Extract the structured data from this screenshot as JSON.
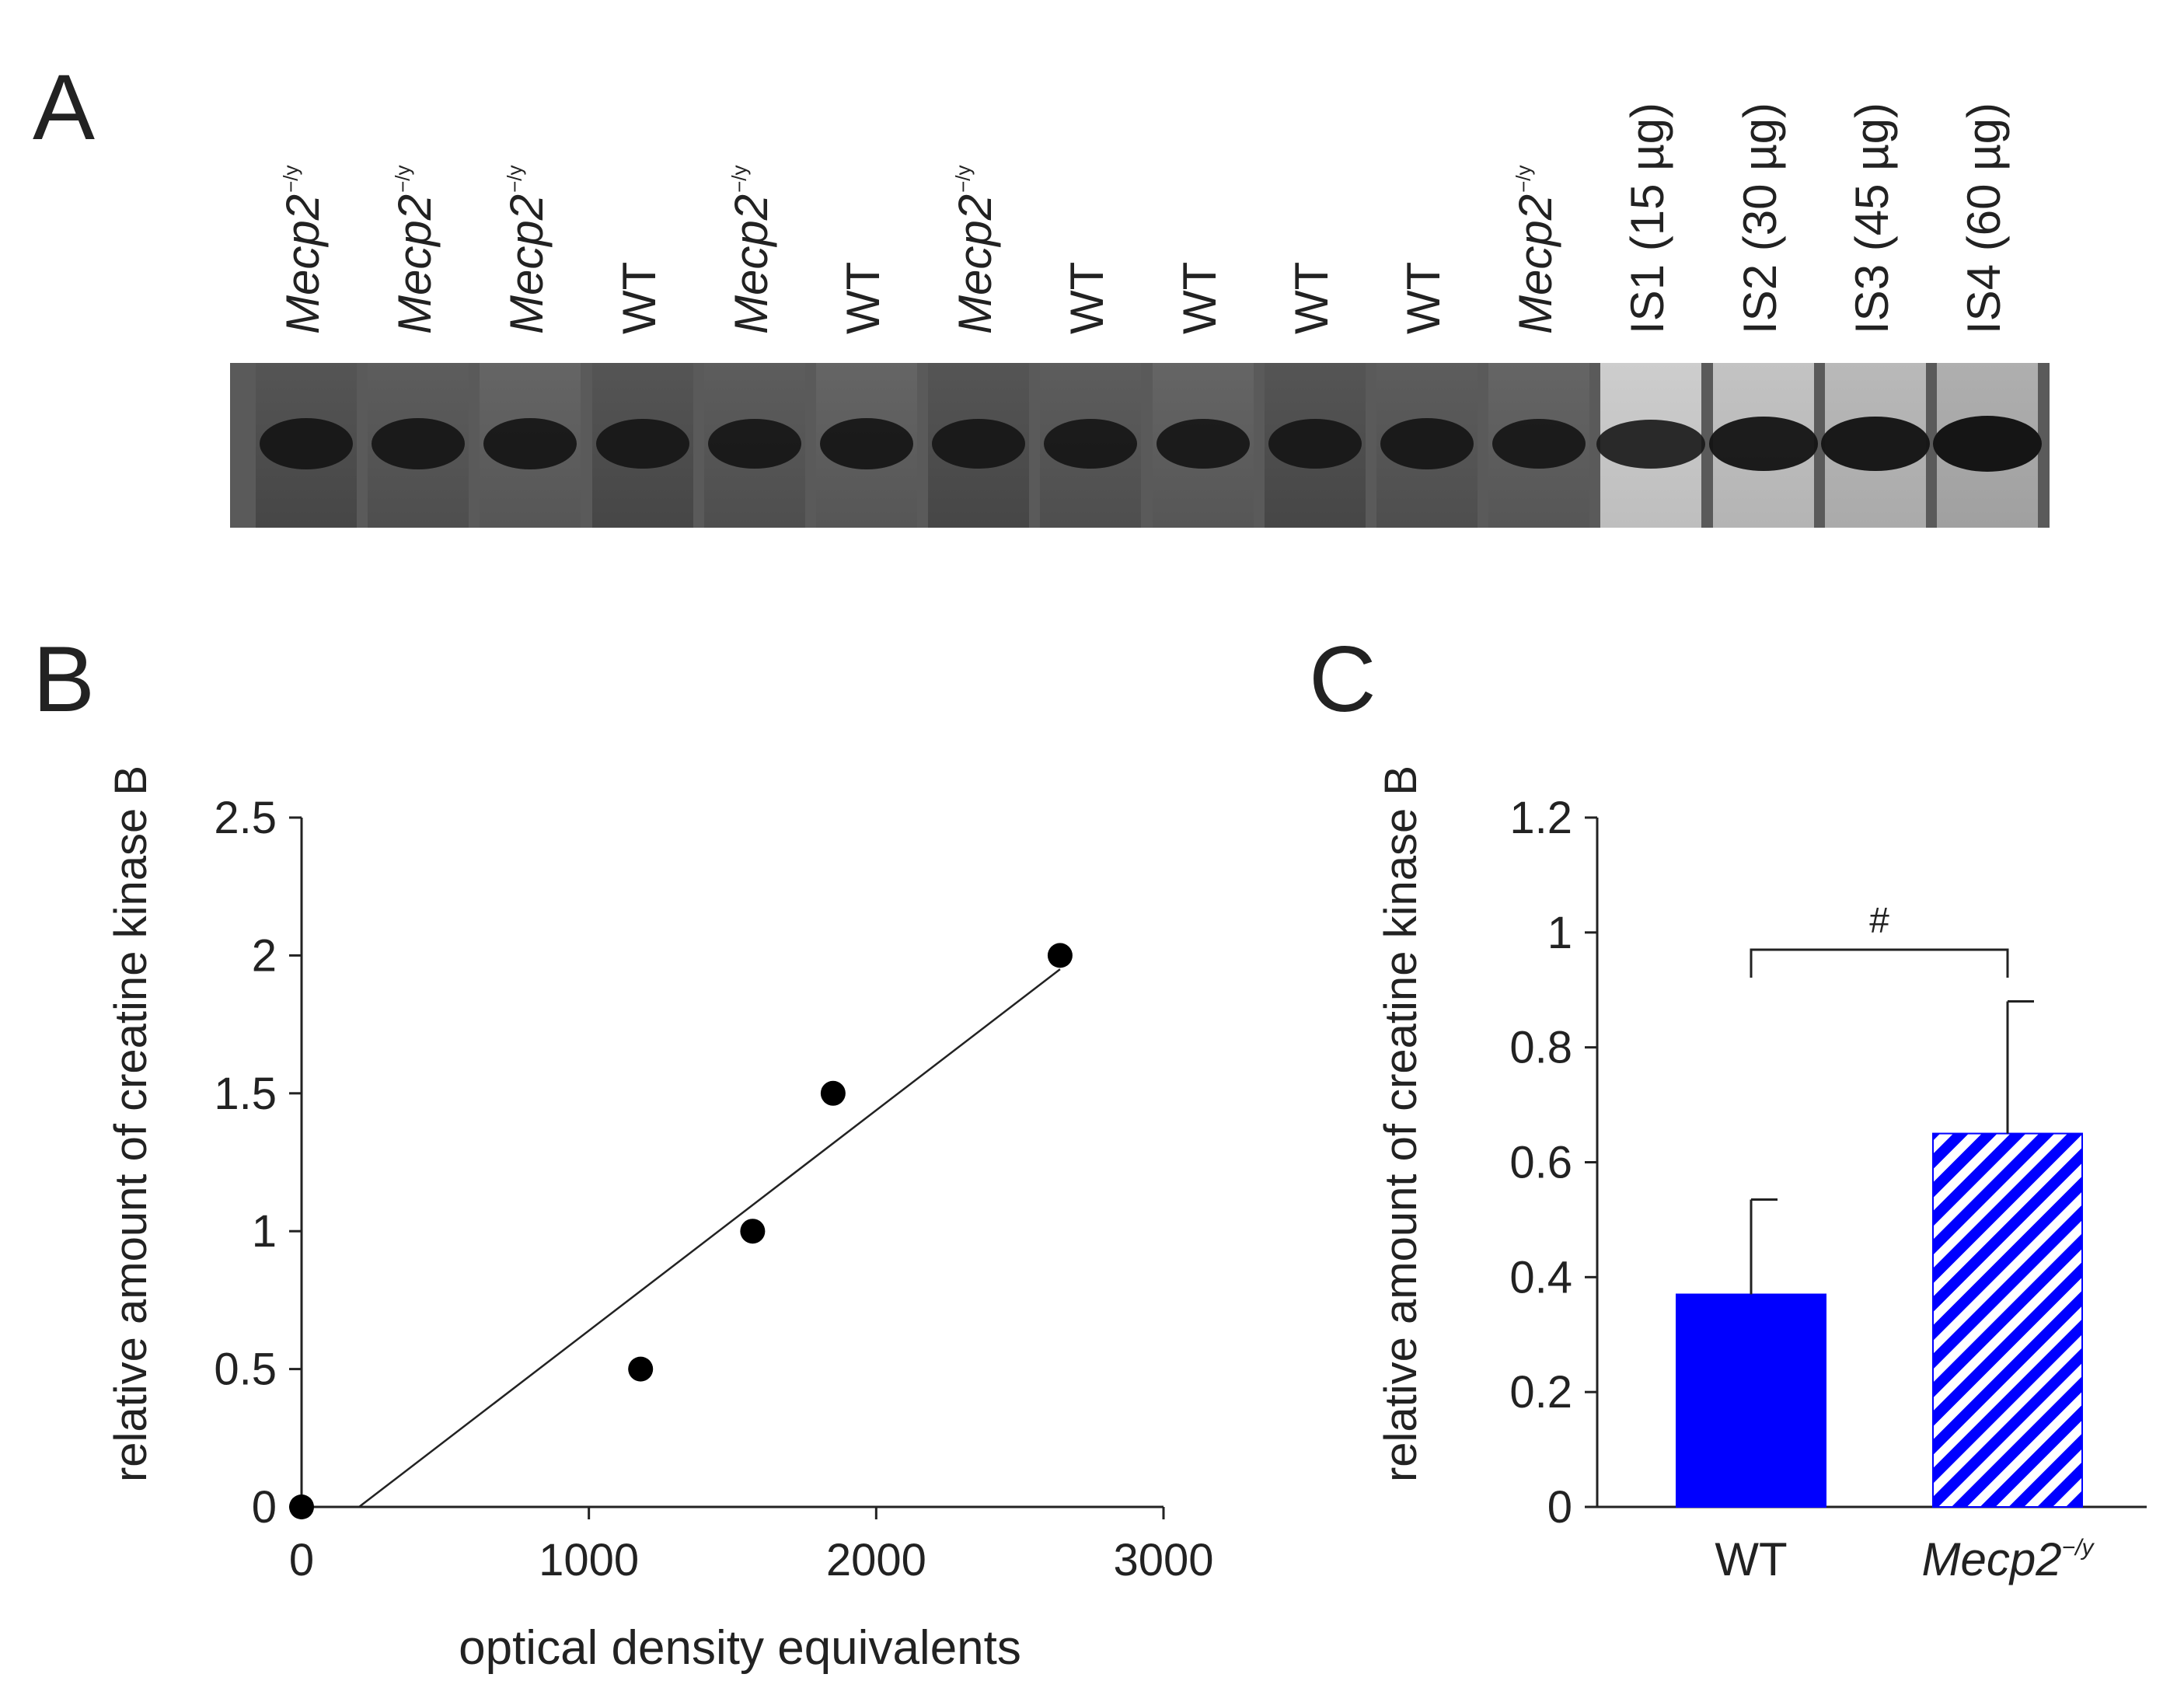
{
  "panels": {
    "a": "A",
    "b": "B",
    "c": "C"
  },
  "blot": {
    "lanes": [
      {
        "label": "Mecp2",
        "sup": "−/y",
        "italic": true,
        "intensity": 0.85
      },
      {
        "label": "Mecp2",
        "sup": "−/y",
        "italic": true,
        "intensity": 0.85
      },
      {
        "label": "Mecp2",
        "sup": "−/y",
        "italic": true,
        "intensity": 0.85
      },
      {
        "label": "WT",
        "sup": "",
        "italic": false,
        "intensity": 0.8
      },
      {
        "label": "Mecp2",
        "sup": "−/y",
        "italic": true,
        "intensity": 0.8
      },
      {
        "label": "WT",
        "sup": "",
        "italic": false,
        "intensity": 0.85
      },
      {
        "label": "Mecp2",
        "sup": "−/y",
        "italic": true,
        "intensity": 0.8
      },
      {
        "label": "WT",
        "sup": "",
        "italic": false,
        "intensity": 0.8
      },
      {
        "label": "WT",
        "sup": "",
        "italic": false,
        "intensity": 0.8
      },
      {
        "label": "WT",
        "sup": "",
        "italic": false,
        "intensity": 0.8
      },
      {
        "label": "WT",
        "sup": "",
        "italic": false,
        "intensity": 0.85
      },
      {
        "label": "Mecp2",
        "sup": "−/y",
        "italic": true,
        "intensity": 0.8
      },
      {
        "label": "IS1 (15 µg)",
        "sup": "",
        "italic": false,
        "intensity": 0.75
      },
      {
        "label": "IS2 (30 µg)",
        "sup": "",
        "italic": false,
        "intensity": 0.92
      },
      {
        "label": "IS3 (45 µg)",
        "sup": "",
        "italic": false,
        "intensity": 0.96
      },
      {
        "label": "IS4 (60 µg)",
        "sup": "",
        "italic": false,
        "intensity": 1.0
      }
    ]
  },
  "chart_data": [
    {
      "type": "scatter",
      "panel": "B",
      "xlabel": "optical density equivalents",
      "ylabel": "relative amount of creatine kinase B",
      "xlim": [
        0,
        3000
      ],
      "ylim": [
        0,
        2.5
      ],
      "xticks": [
        0,
        1000,
        2000,
        3000
      ],
      "xtick_labels": [
        "0",
        "1000",
        "2000",
        "3000"
      ],
      "yticks": [
        0,
        0.5,
        1,
        1.5,
        2,
        2.5
      ],
      "ytick_labels": [
        "0",
        "0.5",
        "1",
        "1.5",
        "2",
        "2.5"
      ],
      "points": [
        {
          "x": 0,
          "y": 0
        },
        {
          "x": 1180,
          "y": 0.5
        },
        {
          "x": 1570,
          "y": 1
        },
        {
          "x": 1850,
          "y": 1.5
        },
        {
          "x": 2640,
          "y": 2
        }
      ],
      "fit_line": {
        "x": [
          200,
          2640
        ],
        "y": [
          0,
          1.95
        ]
      },
      "grid": false,
      "legend": "none"
    },
    {
      "type": "bar",
      "panel": "C",
      "categories": [
        "WT",
        "Mecp2"
      ],
      "category_sup": [
        "",
        "−/y"
      ],
      "values": [
        0.37,
        0.65
      ],
      "errors": [
        0.165,
        0.23
      ],
      "colors": [
        "#0000ff",
        "#0000ff"
      ],
      "patterns": [
        "solid",
        "hatched"
      ],
      "ylabel": "relative amount of creatine kinase B",
      "ylim": [
        0,
        1.2
      ],
      "yticks": [
        0,
        0.2,
        0.4,
        0.6,
        0.8,
        1,
        1.2
      ],
      "ytick_labels": [
        "0",
        "0.2",
        "0.4",
        "0.6",
        "0.8",
        "1",
        "1.2"
      ],
      "annotation": {
        "text": "#",
        "from": 0,
        "to": 1,
        "y": 0.97
      },
      "grid": false,
      "legend": "none"
    }
  ]
}
